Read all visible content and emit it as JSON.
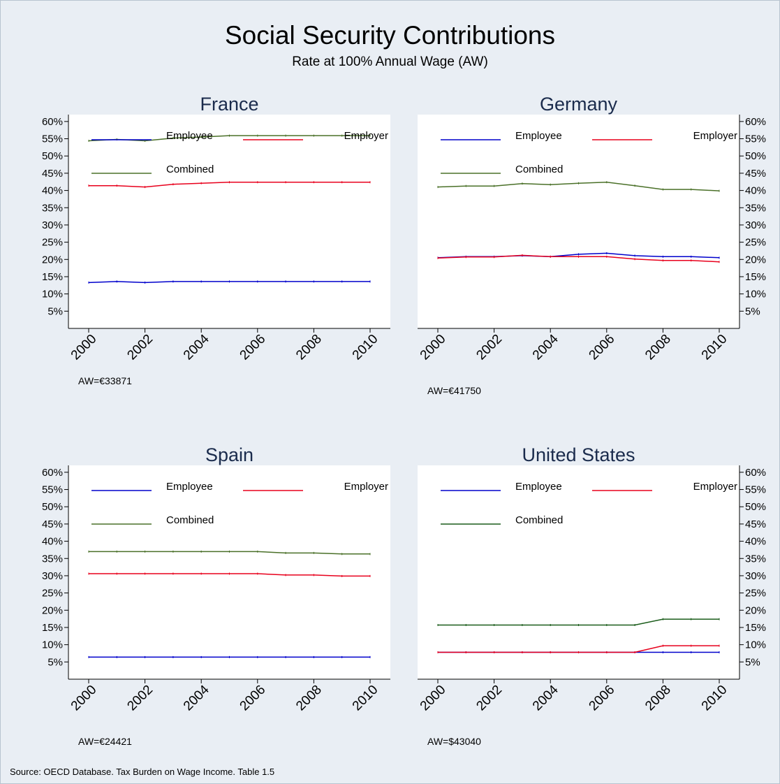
{
  "title": "Social Security Contributions",
  "subtitle": "Rate at 100% Annual Wage (AW)",
  "source": "Source: OECD Database. Tax Burden on Wage Income. Table 1.5",
  "colors": {
    "background": "#e9eef4",
    "plot_background": "#ffffff",
    "employee": "#0000cc",
    "employer": "#e8001c",
    "combined": "#4a7028",
    "combined_us": "#1a5c1a",
    "panel_title": "#1a2b4c"
  },
  "chart_data": [
    {
      "type": "line",
      "title": "France",
      "note": "AW=€33871",
      "x": [
        2000,
        2001,
        2002,
        2003,
        2004,
        2005,
        2006,
        2007,
        2008,
        2009,
        2010
      ],
      "x_tick_labels": [
        "2000",
        "2002",
        "2004",
        "2006",
        "2008",
        "2010"
      ],
      "y_tick_labels": [
        "5%",
        "10%",
        "15%",
        "20%",
        "25%",
        "30%",
        "35%",
        "40%",
        "45%",
        "50%",
        "55%",
        "60%"
      ],
      "ylim": [
        0,
        62
      ],
      "y_axis_side": "left",
      "legend": "top, inside plot",
      "grid": false,
      "series": [
        {
          "name": "Employee",
          "values": [
            13.3,
            13.6,
            13.3,
            13.6,
            13.6,
            13.6,
            13.6,
            13.6,
            13.6,
            13.6,
            13.6
          ]
        },
        {
          "name": "Employer",
          "values": [
            41.4,
            41.4,
            41.0,
            41.8,
            42.1,
            42.4,
            42.4,
            42.4,
            42.4,
            42.4,
            42.4
          ]
        },
        {
          "name": "Combined",
          "values": [
            54.4,
            54.8,
            54.4,
            55.2,
            55.5,
            55.9,
            55.9,
            55.9,
            55.9,
            55.9,
            55.9
          ]
        }
      ]
    },
    {
      "type": "line",
      "title": "Germany",
      "note": "AW=€41750",
      "x": [
        2000,
        2001,
        2002,
        2003,
        2004,
        2005,
        2006,
        2007,
        2008,
        2009,
        2010
      ],
      "x_tick_labels": [
        "2000",
        "2002",
        "2004",
        "2006",
        "2008",
        "2010"
      ],
      "y_tick_labels": [
        "5%",
        "10%",
        "15%",
        "20%",
        "25%",
        "30%",
        "35%",
        "40%",
        "45%",
        "50%",
        "55%",
        "60%"
      ],
      "ylim": [
        0,
        62
      ],
      "y_axis_side": "right",
      "legend": "top, inside plot",
      "grid": false,
      "series": [
        {
          "name": "Employee",
          "values": [
            20.5,
            20.8,
            20.8,
            21.1,
            20.8,
            21.5,
            21.8,
            21.1,
            20.8,
            20.8,
            20.5
          ]
        },
        {
          "name": "Employer",
          "values": [
            20.4,
            20.7,
            20.7,
            21.2,
            20.8,
            20.8,
            20.8,
            20.1,
            19.7,
            19.7,
            19.3
          ]
        },
        {
          "name": "Combined",
          "values": [
            41.0,
            41.3,
            41.3,
            42.0,
            41.7,
            42.1,
            42.4,
            41.4,
            40.3,
            40.3,
            39.9
          ]
        }
      ]
    },
    {
      "type": "line",
      "title": "Spain",
      "note": "AW=€24421",
      "x": [
        2000,
        2001,
        2002,
        2003,
        2004,
        2005,
        2006,
        2007,
        2008,
        2009,
        2010
      ],
      "x_tick_labels": [
        "2000",
        "2002",
        "2004",
        "2006",
        "2008",
        "2010"
      ],
      "y_tick_labels": [
        "5%",
        "10%",
        "15%",
        "20%",
        "25%",
        "30%",
        "35%",
        "40%",
        "45%",
        "50%",
        "55%",
        "60%"
      ],
      "ylim": [
        0,
        62
      ],
      "y_axis_side": "left",
      "legend": "top, inside plot",
      "grid": false,
      "series": [
        {
          "name": "Employee",
          "values": [
            6.4,
            6.4,
            6.4,
            6.4,
            6.4,
            6.4,
            6.4,
            6.4,
            6.4,
            6.4,
            6.4
          ]
        },
        {
          "name": "Employer",
          "values": [
            30.6,
            30.6,
            30.6,
            30.6,
            30.6,
            30.6,
            30.6,
            30.2,
            30.2,
            29.9,
            29.9
          ]
        },
        {
          "name": "Combined",
          "values": [
            37.0,
            37.0,
            37.0,
            37.0,
            37.0,
            37.0,
            37.0,
            36.6,
            36.6,
            36.3,
            36.3
          ]
        }
      ]
    },
    {
      "type": "line",
      "title": "United States",
      "note": "AW=$43040",
      "x": [
        2000,
        2001,
        2002,
        2003,
        2004,
        2005,
        2006,
        2007,
        2008,
        2009,
        2010
      ],
      "x_tick_labels": [
        "2000",
        "2002",
        "2004",
        "2006",
        "2008",
        "2010"
      ],
      "y_tick_labels": [
        "5%",
        "10%",
        "15%",
        "20%",
        "25%",
        "30%",
        "35%",
        "40%",
        "45%",
        "50%",
        "55%",
        "60%"
      ],
      "ylim": [
        0,
        62
      ],
      "y_axis_side": "right",
      "legend": "top, inside plot",
      "grid": false,
      "series": [
        {
          "name": "Employee",
          "values": [
            7.8,
            7.8,
            7.8,
            7.8,
            7.8,
            7.8,
            7.8,
            7.8,
            7.8,
            7.8,
            7.8
          ]
        },
        {
          "name": "Employer",
          "values": [
            7.8,
            7.8,
            7.8,
            7.8,
            7.8,
            7.8,
            7.8,
            7.8,
            9.7,
            9.7,
            9.7
          ]
        },
        {
          "name": "Combined",
          "values": [
            15.7,
            15.7,
            15.7,
            15.7,
            15.7,
            15.7,
            15.7,
            15.7,
            17.4,
            17.4,
            17.4
          ]
        }
      ]
    }
  ]
}
